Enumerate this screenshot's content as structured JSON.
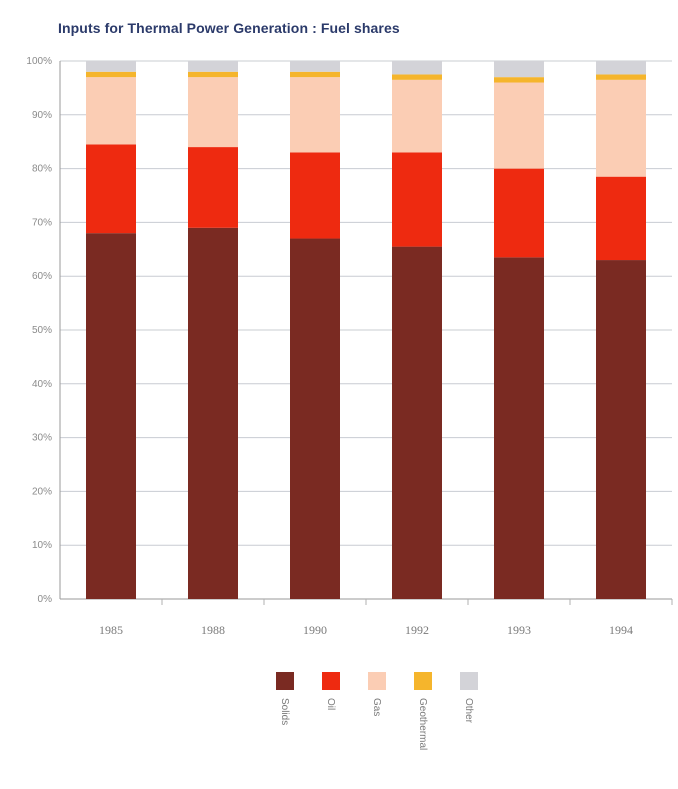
{
  "chart_data": {
    "type": "bar",
    "stacked": true,
    "title": "Inputs for Thermal Power Generation : Fuel shares",
    "categories": [
      "1985",
      "1988",
      "1990",
      "1992",
      "1993",
      "1994"
    ],
    "ylim": [
      0,
      100
    ],
    "yticks": [
      "0%",
      "10%",
      "20%",
      "30%",
      "40%",
      "50%",
      "60%",
      "70%",
      "80%",
      "90%",
      "100%"
    ],
    "grid": true,
    "legend_position": "bottom",
    "series": [
      {
        "name": "Solids",
        "color": "#7a2a22",
        "values": [
          68,
          69,
          67,
          65.5,
          63.5,
          63
        ]
      },
      {
        "name": "Oil",
        "color": "#ee2a10",
        "values": [
          16.5,
          15,
          16,
          17.5,
          16.5,
          15.5
        ]
      },
      {
        "name": "Gas",
        "color": "#fbcdb4",
        "values": [
          12.5,
          13,
          14,
          13.5,
          16,
          18
        ]
      },
      {
        "name": "Geothermal",
        "color": "#f5b52c",
        "values": [
          1,
          1,
          1,
          1,
          1,
          1
        ]
      },
      {
        "name": "Other",
        "color": "#d3d3d8",
        "values": [
          2,
          2,
          2,
          2.5,
          3,
          2.5
        ]
      }
    ]
  }
}
